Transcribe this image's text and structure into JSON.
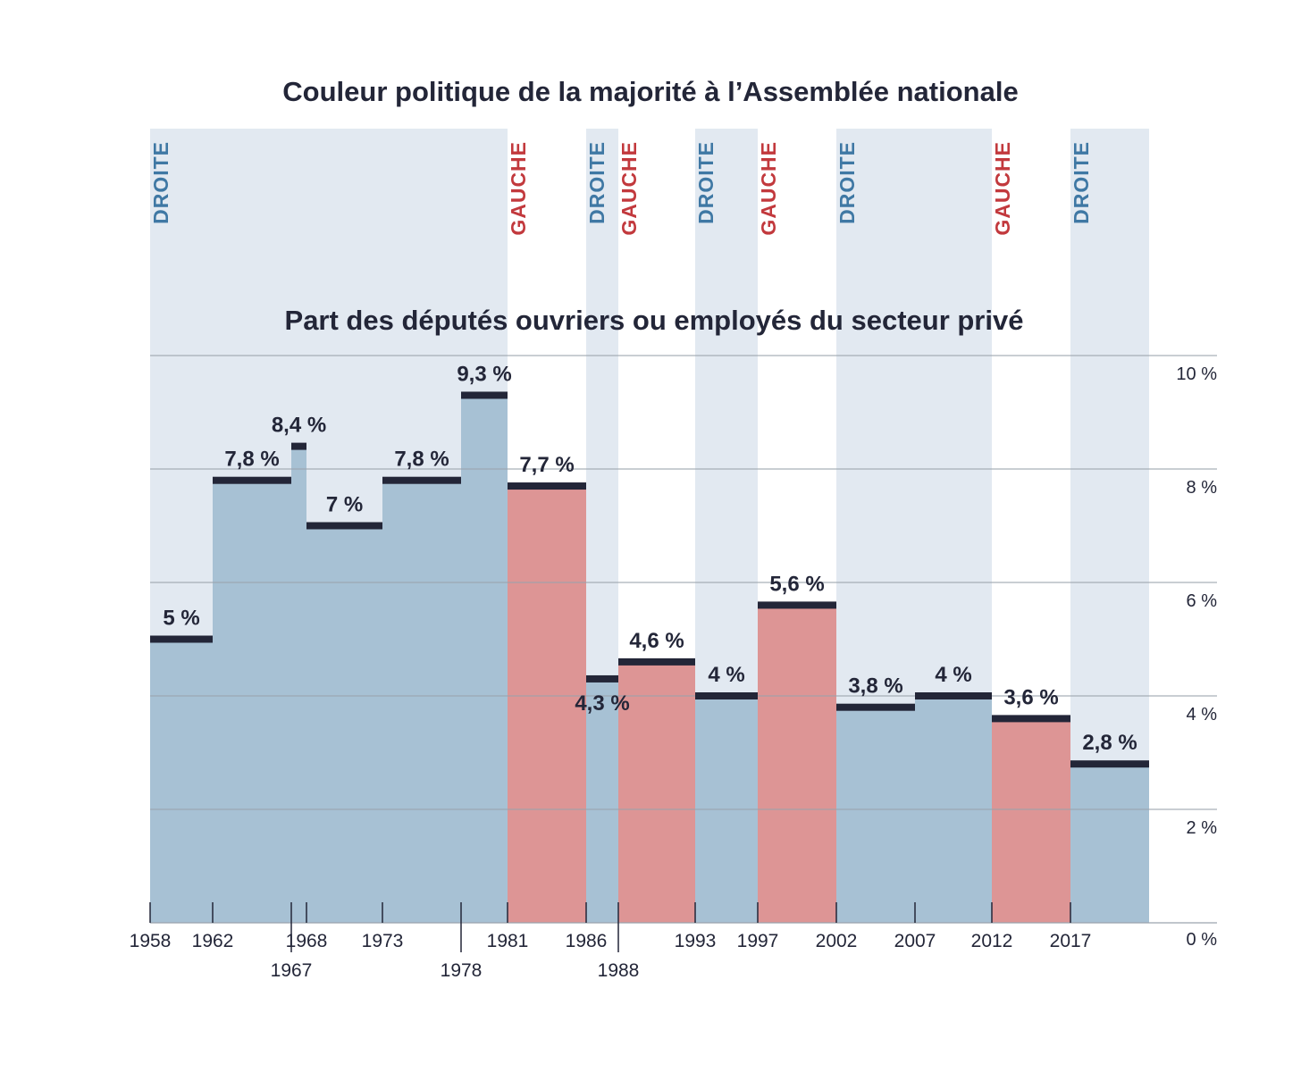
{
  "title": "Couleur politique de la majorité à l’Assemblée nationale",
  "subtitle": "Part des députés ouvriers ou employés du secteur privé",
  "colors": {
    "droite_band": "#e2e9f1",
    "droite_bar": "#a7c1d4",
    "droite_text": "#3f78a4",
    "gauche_bar": "#dd9595",
    "gauche_text": "#c2393d",
    "level_line": "#232638",
    "grid": "#9aa3ad"
  },
  "chart_data": {
    "type": "area",
    "title": "Part des députés ouvriers ou employés du secteur privé",
    "unit": "%",
    "ylim": [
      0,
      10
    ],
    "yticks": [
      {
        "value": 0,
        "label": "0 %"
      },
      {
        "value": 2,
        "label": "2 %"
      },
      {
        "value": 4,
        "label": "4 %"
      },
      {
        "value": 6,
        "label": "6 %"
      },
      {
        "value": 8,
        "label": "8 %"
      },
      {
        "value": 10,
        "label": "10 %"
      }
    ],
    "grid": true,
    "xlim": [
      1958,
      2022
    ],
    "xticks": [
      {
        "year": 1958,
        "label": "1958",
        "row": 0
      },
      {
        "year": 1962,
        "label": "1962",
        "row": 0
      },
      {
        "year": 1967,
        "label": "1967",
        "row": 1
      },
      {
        "year": 1968,
        "label": "1968",
        "row": 0
      },
      {
        "year": 1973,
        "label": "1973",
        "row": 0
      },
      {
        "year": 1978,
        "label": "1978",
        "row": 1
      },
      {
        "year": 1981,
        "label": "1981",
        "row": 0
      },
      {
        "year": 1986,
        "label": "1986",
        "row": 0
      },
      {
        "year": 1988,
        "label": "1988",
        "row": 1
      },
      {
        "year": 1993,
        "label": "1993",
        "row": 0
      },
      {
        "year": 1997,
        "label": "1997",
        "row": 0
      },
      {
        "year": 2002,
        "label": "2002",
        "row": 0
      },
      {
        "year": 2007,
        "label": "2007",
        "row": 0
      },
      {
        "year": 2012,
        "label": "2012",
        "row": 0
      },
      {
        "year": 2017,
        "label": "2017",
        "row": 0
      }
    ],
    "legislatures": [
      {
        "start": 1958,
        "end": 1962,
        "value": 5.0,
        "label": "5 %",
        "majority": "droite",
        "label_pos": "above"
      },
      {
        "start": 1962,
        "end": 1967,
        "value": 7.8,
        "label": "7,8 %",
        "majority": "droite",
        "label_pos": "above"
      },
      {
        "start": 1967,
        "end": 1968,
        "value": 8.4,
        "label": "8,4 %",
        "majority": "droite",
        "label_pos": "above"
      },
      {
        "start": 1968,
        "end": 1973,
        "value": 7.0,
        "label": "7 %",
        "majority": "droite",
        "label_pos": "above"
      },
      {
        "start": 1973,
        "end": 1978,
        "value": 7.8,
        "label": "7,8 %",
        "majority": "droite",
        "label_pos": "above"
      },
      {
        "start": 1978,
        "end": 1981,
        "value": 9.3,
        "label": "9,3 %",
        "majority": "droite",
        "label_pos": "above"
      },
      {
        "start": 1981,
        "end": 1986,
        "value": 7.7,
        "label": "7,7 %",
        "majority": "gauche",
        "label_pos": "above"
      },
      {
        "start": 1986,
        "end": 1988,
        "value": 4.3,
        "label": "4,3 %",
        "majority": "droite",
        "label_pos": "below"
      },
      {
        "start": 1988,
        "end": 1993,
        "value": 4.6,
        "label": "4,6 %",
        "majority": "gauche",
        "label_pos": "above"
      },
      {
        "start": 1993,
        "end": 1997,
        "value": 4.0,
        "label": "4 %",
        "majority": "droite",
        "label_pos": "above"
      },
      {
        "start": 1997,
        "end": 2002,
        "value": 5.6,
        "label": "5,6 %",
        "majority": "gauche",
        "label_pos": "above"
      },
      {
        "start": 2002,
        "end": 2007,
        "value": 3.8,
        "label": "3,8 %",
        "majority": "droite",
        "label_pos": "above"
      },
      {
        "start": 2007,
        "end": 2012,
        "value": 4.0,
        "label": "4 %",
        "majority": "droite",
        "label_pos": "above"
      },
      {
        "start": 2012,
        "end": 2017,
        "value": 3.6,
        "label": "3,6 %",
        "majority": "gauche",
        "label_pos": "above"
      },
      {
        "start": 2017,
        "end": 2022,
        "value": 2.8,
        "label": "2,8 %",
        "majority": "droite",
        "label_pos": "above"
      }
    ],
    "majority_periods": [
      {
        "start": 1958,
        "end": 1981,
        "label": "DROITE",
        "majority": "droite"
      },
      {
        "start": 1981,
        "end": 1986,
        "label": "GAUCHE",
        "majority": "gauche"
      },
      {
        "start": 1986,
        "end": 1988,
        "label": "DROITE",
        "majority": "droite"
      },
      {
        "start": 1988,
        "end": 1993,
        "label": "GAUCHE",
        "majority": "gauche"
      },
      {
        "start": 1993,
        "end": 1997,
        "label": "DROITE",
        "majority": "droite"
      },
      {
        "start": 1997,
        "end": 2002,
        "label": "GAUCHE",
        "majority": "gauche"
      },
      {
        "start": 2002,
        "end": 2012,
        "label": "DROITE",
        "majority": "droite"
      },
      {
        "start": 2012,
        "end": 2017,
        "label": "GAUCHE",
        "majority": "gauche"
      },
      {
        "start": 2017,
        "end": 2022,
        "label": "DROITE",
        "majority": "droite"
      }
    ]
  }
}
